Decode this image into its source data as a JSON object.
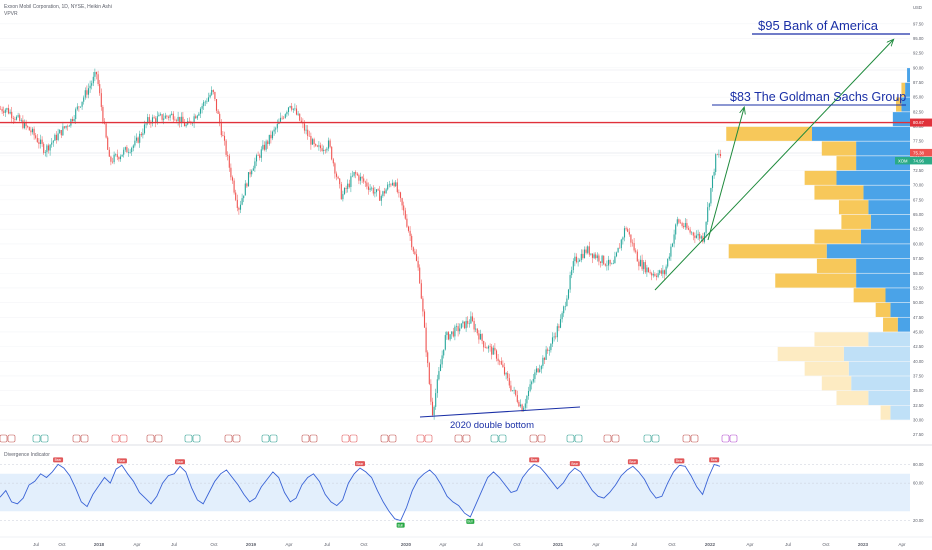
{
  "header": {
    "symbol_line": "Exxon Mobil Corporation, 1D, NYSE, Heikin Ashi",
    "indicator_line": "VPVR",
    "currency": "USD"
  },
  "oscillator": {
    "title": "Divergence Indicator",
    "bull_label": "Bull",
    "bear_label": "Bear",
    "band_color": "#d7e8fb",
    "line_color": "#3a63d6",
    "levels": [
      80,
      60,
      20
    ]
  },
  "annotations": {
    "bofa_label": "$95 Bank of America",
    "gs_label": "$83 The Goldman Sachs Group",
    "double_bottom_label": "2020 double bottom"
  },
  "price_badges": {
    "resistance": "80.67",
    "current": "75.38",
    "symbol": "XOM",
    "last": "74.96"
  },
  "colors": {
    "up": "#26a69a",
    "down": "#ef5350",
    "annotation_text": "#1a2fa6",
    "resistance_line": "#e0313a",
    "trend_line": "#1e8a3c",
    "vpvr_up": "#f7c85a",
    "vpvr_down": "#4aa3e8",
    "vpvr_up_light": "#fdebc2",
    "vpvr_down_light": "#bfe0f7"
  },
  "chart_data": {
    "type": "candlestick",
    "chart_style": "Heikin Ashi",
    "y_axis": {
      "ylim": [
        27.5,
        97.5
      ],
      "ticks": [
        "97.50",
        "95.00",
        "92.50",
        "90.00",
        "87.50",
        "85.00",
        "82.50",
        "80.00",
        "77.50",
        "75.00",
        "72.50",
        "70.00",
        "67.50",
        "65.00",
        "62.50",
        "60.00",
        "57.50",
        "55.00",
        "52.50",
        "50.00",
        "47.50",
        "45.00",
        "42.50",
        "40.00",
        "37.50",
        "35.00",
        "32.50",
        "30.00",
        "27.50"
      ],
      "position": "right"
    },
    "x_axis": {
      "tick_labels": [
        "Jul",
        "Oct",
        "2018",
        "Apr",
        "Jul",
        "Oct",
        "2019",
        "Apr",
        "Jul",
        "Oct",
        "2020",
        "Apr",
        "Jul",
        "Oct",
        "2021",
        "Apr",
        "Jul",
        "Oct",
        "2022",
        "Apr",
        "Jul",
        "Oct",
        "2023",
        "Apr"
      ]
    },
    "price_path": [
      {
        "date": "2017-06",
        "price": 83
      },
      {
        "date": "2017-08",
        "price": 79
      },
      {
        "date": "2017-09",
        "price": 76
      },
      {
        "date": "2017-11",
        "price": 81
      },
      {
        "date": "2018-01",
        "price": 89
      },
      {
        "date": "2018-02",
        "price": 74
      },
      {
        "date": "2018-04",
        "price": 77
      },
      {
        "date": "2018-05",
        "price": 81
      },
      {
        "date": "2018-07",
        "price": 82
      },
      {
        "date": "2018-08",
        "price": 80
      },
      {
        "date": "2018-10",
        "price": 86
      },
      {
        "date": "2018-12",
        "price": 66
      },
      {
        "date": "2019-01",
        "price": 73
      },
      {
        "date": "2019-03",
        "price": 80
      },
      {
        "date": "2019-04",
        "price": 84
      },
      {
        "date": "2019-06",
        "price": 76
      },
      {
        "date": "2019-07",
        "price": 77
      },
      {
        "date": "2019-08",
        "price": 68
      },
      {
        "date": "2019-09",
        "price": 72
      },
      {
        "date": "2019-11",
        "price": 68
      },
      {
        "date": "2019-12",
        "price": 71
      },
      {
        "date": "2020-01",
        "price": 64
      },
      {
        "date": "2020-02",
        "price": 55
      },
      {
        "date": "2020-03",
        "price": 31
      },
      {
        "date": "2020-04",
        "price": 44
      },
      {
        "date": "2020-06",
        "price": 47
      },
      {
        "date": "2020-07",
        "price": 43
      },
      {
        "date": "2020-08",
        "price": 41
      },
      {
        "date": "2020-09",
        "price": 36
      },
      {
        "date": "2020-10",
        "price": 32
      },
      {
        "date": "2020-11",
        "price": 38
      },
      {
        "date": "2020-12",
        "price": 42
      },
      {
        "date": "2021-01",
        "price": 47
      },
      {
        "date": "2021-02",
        "price": 57
      },
      {
        "date": "2021-03",
        "price": 59
      },
      {
        "date": "2021-05",
        "price": 56
      },
      {
        "date": "2021-06",
        "price": 63
      },
      {
        "date": "2021-07",
        "price": 57
      },
      {
        "date": "2021-08",
        "price": 55
      },
      {
        "date": "2021-09",
        "price": 55
      },
      {
        "date": "2021-10",
        "price": 64
      },
      {
        "date": "2021-11",
        "price": 62
      },
      {
        "date": "2021-12",
        "price": 61
      },
      {
        "date": "2022-01",
        "price": 75
      }
    ],
    "resistance_level": 80.67,
    "trend_lines": [
      {
        "from": {
          "date": "2021-08",
          "price": 52
        },
        "to": {
          "date": "2022-10",
          "price": 95
        }
      },
      {
        "from": {
          "date": "2021-12",
          "price": 59
        },
        "to": {
          "date": "2022-02",
          "price": 83
        }
      }
    ],
    "target_lines": [
      {
        "date_from": "2022-03",
        "date_to": "2023-04",
        "price": 95
      },
      {
        "date_from": "2022-01",
        "date_to": "2023-03",
        "price": 83
      }
    ],
    "double_bottom_line": {
      "from": {
        "date": "2020-03",
        "price": 30.5
      },
      "to": {
        "date": "2021-01",
        "price": 32.5
      }
    },
    "volume_profile": [
      {
        "price": 88.75,
        "up": 0,
        "down": 1.2
      },
      {
        "price": 86.25,
        "up": 1.5,
        "down": 2.0
      },
      {
        "price": 83.75,
        "up": 2.2,
        "down": 3.5
      },
      {
        "price": 81.25,
        "up": 0,
        "down": 7.0
      },
      {
        "price": 78.75,
        "up": 35.0,
        "down": 40.0
      },
      {
        "price": 76.25,
        "up": 14.0,
        "down": 22.0
      },
      {
        "price": 73.75,
        "up": 8.0,
        "down": 22.0
      },
      {
        "price": 71.25,
        "up": 13.0,
        "down": 30.0
      },
      {
        "price": 68.75,
        "up": 20.0,
        "down": 19.0
      },
      {
        "price": 66.25,
        "up": 12.0,
        "down": 17.0
      },
      {
        "price": 63.75,
        "up": 12.0,
        "down": 16.0
      },
      {
        "price": 61.25,
        "up": 19.0,
        "down": 20.0
      },
      {
        "price": 58.75,
        "up": 40.0,
        "down": 34.0
      },
      {
        "price": 56.25,
        "up": 16.0,
        "down": 22.0
      },
      {
        "price": 53.75,
        "up": 33.0,
        "down": 22.0
      },
      {
        "price": 51.25,
        "up": 13.0,
        "down": 10.0
      },
      {
        "price": 48.75,
        "up": 6.0,
        "down": 8.0
      },
      {
        "price": 46.25,
        "up": 6.0,
        "down": 5.0
      },
      {
        "price": 43.75,
        "up": 22.0,
        "down": 17.0
      },
      {
        "price": 41.25,
        "up": 27.0,
        "down": 27.0
      },
      {
        "price": 38.75,
        "up": 18.0,
        "down": 25.0
      },
      {
        "price": 36.25,
        "up": 12.0,
        "down": 24.0
      },
      {
        "price": 33.75,
        "up": 13.0,
        "down": 17.0
      },
      {
        "price": 31.25,
        "up": 4.0,
        "down": 8.0
      }
    ],
    "oscillator_series": [
      45,
      52,
      40,
      38,
      44,
      58,
      62,
      70,
      66,
      72,
      80,
      76,
      68,
      55,
      40,
      35,
      48,
      57,
      66,
      60,
      75,
      79,
      70,
      62,
      50,
      44,
      38,
      46,
      60,
      68,
      70,
      78,
      72,
      55,
      42,
      38,
      50,
      62,
      70,
      74,
      66,
      58,
      48,
      40,
      44,
      56,
      64,
      72,
      66,
      50,
      40,
      44,
      58,
      66,
      70,
      62,
      48,
      40,
      36,
      42,
      60,
      70,
      76,
      72,
      66,
      52,
      40,
      30,
      22,
      20,
      34,
      52,
      64,
      70,
      74,
      68,
      58,
      46,
      40,
      36,
      28,
      24,
      38,
      52,
      66,
      72,
      66,
      58,
      50,
      52,
      66,
      74,
      80,
      77,
      70,
      62,
      54,
      60,
      70,
      76,
      72,
      62,
      52,
      46,
      44,
      50,
      58,
      68,
      74,
      78,
      72,
      64,
      52,
      44,
      46,
      60,
      72,
      79,
      78,
      68,
      56,
      48,
      66,
      80,
      78
    ]
  }
}
